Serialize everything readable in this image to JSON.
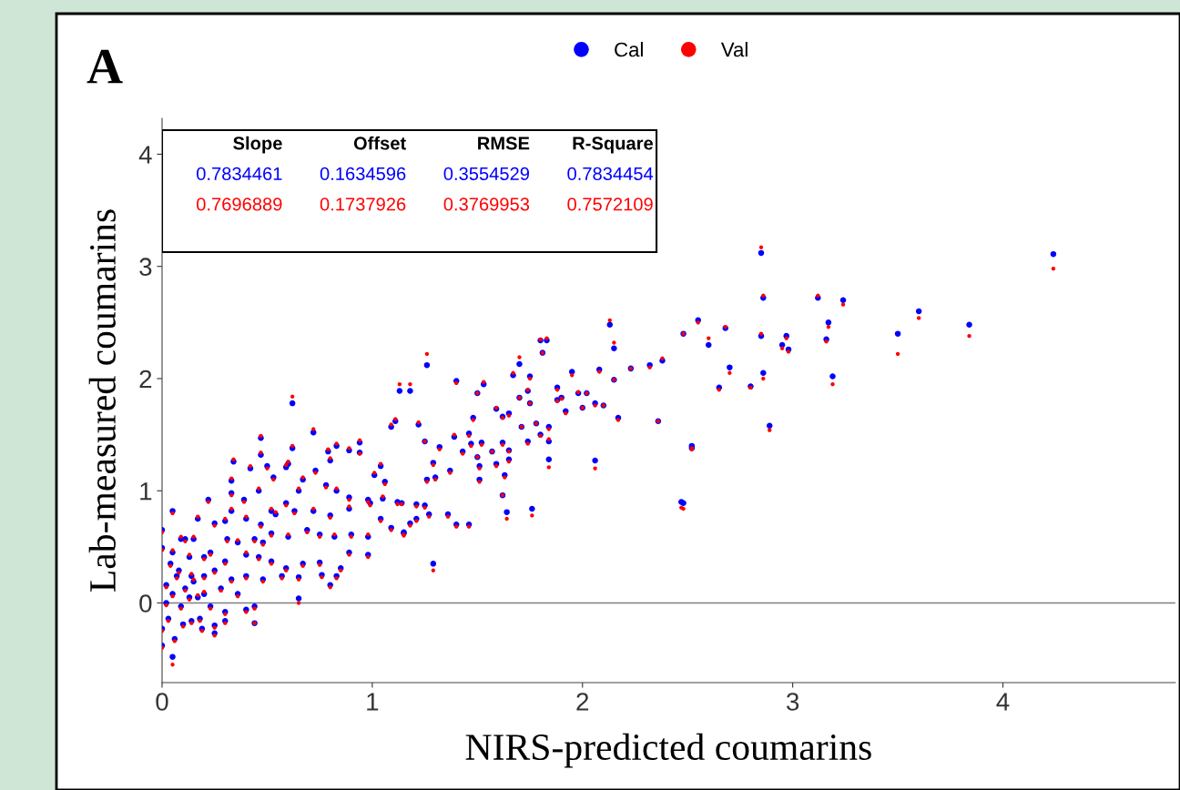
{
  "chart_data": {
    "type": "scatter",
    "xlabel": "NIRS-predicted coumarins",
    "ylabel": "Lab-measured coumarins",
    "annotations": [
      "A",
      "Slope",
      "Offset",
      "RMSE",
      "R-Square",
      "0.7834461",
      "0.1634596",
      "0.3554529",
      "0.7834454",
      "0.7696889",
      "0.1737926",
      "0.3769953",
      "0.7572109"
    ],
    "x": [
      2.47,
      2.52,
      2.48,
      2.55,
      2.6,
      2.65,
      2.68,
      2.7,
      2.8,
      2.85,
      2.86,
      2.86,
      2.85,
      2.89,
      2.95,
      2.97,
      2.98,
      3.12,
      3.16,
      3.17,
      3.19,
      3.24,
      3.5,
      3.6,
      3.84,
      4.24,
      2.13,
      2.15,
      1.26,
      1.18,
      1.4,
      1.53,
      1.5,
      1.7,
      1.8,
      1.83,
      1.81,
      1.67,
      1.75,
      1.95,
      2.08,
      2.23,
      2.32,
      2.38,
      2.15,
      1.88,
      1.98,
      2.02,
      1.7,
      1.74,
      1.75,
      1.9,
      1.88,
      1.92,
      2.0,
      2.06,
      2.1,
      2.17,
      2.36,
      1.48,
      1.59,
      1.62,
      1.65,
      1.22,
      1.71,
      1.78,
      1.84,
      1.84,
      1.8,
      1.74,
      1.25,
      1.32,
      1.39,
      1.46,
      1.47,
      1.52,
      1.43,
      1.5,
      1.57,
      1.62,
      1.65,
      1.65,
      1.84,
      2.06,
      2.52,
      2.48,
      1.29,
      1.37,
      1.3,
      1.26,
      1.51,
      1.51,
      1.59,
      1.63,
      1.62,
      1.64,
      1.76,
      1.21,
      1.25,
      1.27,
      1.36,
      1.4,
      1.46,
      1.21,
      1.18,
      1.15,
      1.14,
      1.13,
      0.62,
      0.72,
      1.09,
      1.11,
      0.47,
      0.62,
      0.79,
      0.94,
      0.94,
      0.89,
      0.83,
      0.34,
      0.42,
      0.47,
      0.6,
      0.5,
      0.33,
      0.33,
      0.33,
      0.22,
      0.05,
      0.17,
      0.25,
      0.3,
      0.39,
      0.46,
      0.53,
      0.59,
      0.65,
      0.73,
      0.8,
      0.78,
      0.67,
      0.59,
      0.52,
      0.4,
      0.47,
      0.54,
      0.63,
      0.72,
      0.8,
      0.89,
      0.98,
      1.04,
      1.06,
      1.01,
      0.99,
      1.05,
      0.89,
      0.83,
      1.12,
      1.04,
      1.09,
      1.15,
      0.98,
      0.9,
      0.82,
      0.75,
      0.69,
      0.6,
      0.52,
      0.44,
      0.36,
      0.31,
      0.4,
      0.48,
      0.46,
      0.52,
      0.59,
      0.65,
      0.57,
      0.48,
      0.4,
      0.33,
      0.36,
      0.44,
      0.44,
      0.4,
      0.65,
      0.76,
      0.8,
      0.83,
      0.85,
      0.75,
      0.67,
      0.89,
      0.98,
      1.29,
      0.3,
      0.25,
      0.2,
      0.28,
      0.23,
      0.3,
      0.3,
      0.25,
      0.25,
      0.19,
      0.18,
      0.14,
      0.1,
      0.06,
      0.05,
      0.03,
      0.0,
      0.0,
      0.0,
      0.0,
      0.04,
      0.08,
      0.13,
      0.15,
      0.11,
      0.09,
      0.05,
      0.02,
      0.05,
      0.11,
      0.15,
      0.13,
      0.09,
      0.17,
      0.2,
      0.02,
      0.07,
      0.14,
      0.23,
      0.2
    ],
    "series": [
      {
        "name": "Cal",
        "color": "#0000ff",
        "values": [
          0.9,
          1.4,
          2.4,
          2.52,
          2.3,
          1.92,
          2.45,
          2.1,
          1.93,
          3.12,
          2.72,
          2.05,
          2.38,
          1.58,
          2.3,
          2.38,
          2.26,
          2.72,
          2.35,
          2.5,
          2.02,
          2.7,
          2.4,
          2.6,
          2.48,
          3.11,
          2.48,
          2.27,
          2.12,
          1.89,
          1.98,
          1.95,
          1.87,
          2.13,
          2.34,
          2.34,
          2.23,
          2.03,
          2.02,
          2.06,
          2.08,
          2.09,
          2.12,
          2.16,
          1.99,
          1.92,
          1.87,
          1.87,
          1.83,
          1.89,
          1.78,
          1.83,
          1.81,
          1.71,
          1.74,
          1.78,
          1.76,
          1.65,
          1.62,
          1.65,
          1.73,
          1.66,
          1.69,
          1.59,
          1.57,
          1.6,
          1.57,
          1.44,
          1.5,
          1.44,
          1.44,
          1.39,
          1.48,
          1.51,
          1.42,
          1.43,
          1.35,
          1.3,
          1.35,
          1.43,
          1.36,
          1.28,
          1.28,
          1.27,
          1.38,
          0.89,
          1.25,
          1.18,
          1.12,
          1.1,
          1.22,
          1.1,
          1.24,
          1.14,
          0.96,
          0.81,
          0.84,
          0.88,
          0.87,
          0.79,
          0.79,
          0.7,
          0.7,
          0.75,
          0.71,
          0.63,
          0.89,
          1.89,
          1.78,
          1.52,
          1.57,
          1.62,
          1.47,
          1.38,
          1.35,
          1.43,
          1.34,
          1.36,
          1.4,
          1.26,
          1.2,
          1.32,
          1.24,
          1.22,
          1.09,
          0.98,
          0.82,
          0.92,
          0.82,
          0.75,
          0.71,
          0.73,
          0.92,
          1.0,
          1.12,
          1.21,
          1.0,
          1.18,
          1.27,
          1.05,
          1.1,
          0.89,
          0.82,
          0.75,
          0.7,
          0.79,
          0.82,
          0.82,
          0.78,
          0.84,
          0.92,
          1.22,
          1.08,
          1.14,
          0.89,
          0.93,
          0.94,
          1.0,
          0.9,
          0.75,
          0.67,
          0.62,
          0.59,
          0.61,
          0.59,
          0.61,
          0.65,
          0.59,
          0.62,
          0.57,
          0.54,
          0.57,
          0.43,
          0.54,
          0.41,
          0.37,
          0.31,
          0.23,
          0.24,
          0.21,
          0.24,
          0.21,
          0.08,
          -0.03,
          -0.18,
          -0.06,
          0.04,
          0.25,
          0.16,
          0.24,
          0.31,
          0.36,
          0.35,
          0.45,
          0.43,
          0.35,
          0.37,
          0.29,
          0.24,
          0.13,
          -0.03,
          -0.08,
          -0.16,
          -0.2,
          -0.27,
          -0.23,
          -0.14,
          -0.16,
          -0.19,
          -0.32,
          -0.48,
          -0.14,
          -0.23,
          -0.38,
          0.65,
          0.49,
          0.35,
          0.29,
          0.41,
          0.57,
          0.57,
          0.57,
          0.45,
          0.16,
          0.08,
          0.13,
          0.19,
          0.05,
          -0.03,
          0.05,
          0.08,
          0.0,
          0.24,
          0.24,
          0.45,
          0.41
        ]
      },
      {
        "name": "Val",
        "color": "#ff0000",
        "values": [
          0.85,
          1.38,
          2.4,
          2.5,
          2.36,
          1.9,
          2.46,
          2.05,
          1.92,
          3.17,
          2.74,
          2.0,
          2.4,
          1.54,
          2.27,
          2.36,
          2.24,
          2.74,
          2.33,
          2.46,
          1.95,
          2.66,
          2.22,
          2.54,
          2.38,
          2.98,
          2.52,
          2.32,
          2.22,
          1.95,
          1.96,
          1.97,
          1.87,
          2.19,
          2.35,
          2.36,
          2.23,
          2.05,
          2.0,
          2.03,
          2.06,
          2.09,
          2.1,
          2.18,
          1.99,
          1.9,
          1.88,
          1.87,
          1.83,
          1.9,
          1.78,
          1.82,
          1.8,
          1.69,
          1.74,
          1.76,
          1.76,
          1.63,
          1.62,
          1.63,
          1.74,
          1.65,
          1.67,
          1.61,
          1.57,
          1.6,
          1.55,
          1.46,
          1.49,
          1.42,
          1.44,
          1.37,
          1.5,
          1.49,
          1.4,
          1.41,
          1.33,
          1.3,
          1.35,
          1.41,
          1.35,
          1.26,
          1.21,
          1.2,
          1.37,
          0.84,
          1.23,
          1.16,
          1.1,
          1.08,
          1.2,
          1.08,
          1.22,
          1.12,
          0.96,
          0.75,
          0.78,
          0.86,
          0.85,
          0.77,
          0.77,
          0.68,
          0.68,
          0.73,
          0.69,
          0.61,
          0.88,
          1.95,
          1.84,
          1.55,
          1.59,
          1.64,
          1.49,
          1.4,
          1.37,
          1.45,
          1.33,
          1.38,
          1.42,
          1.28,
          1.22,
          1.34,
          1.26,
          1.2,
          1.11,
          0.96,
          0.84,
          0.9,
          0.8,
          0.77,
          0.69,
          0.75,
          0.9,
          1.02,
          1.1,
          1.23,
          1.02,
          1.16,
          1.29,
          1.03,
          1.12,
          0.87,
          0.84,
          0.77,
          0.68,
          0.81,
          0.8,
          0.84,
          0.76,
          0.86,
          0.9,
          1.24,
          1.06,
          1.16,
          0.87,
          0.95,
          0.92,
          1.02,
          0.88,
          0.73,
          0.65,
          0.6,
          0.61,
          0.59,
          0.61,
          0.59,
          0.63,
          0.61,
          0.6,
          0.55,
          0.56,
          0.55,
          0.45,
          0.52,
          0.39,
          0.35,
          0.29,
          0.21,
          0.22,
          0.19,
          0.22,
          0.19,
          0.06,
          -0.05,
          -0.18,
          -0.08,
          0.0,
          0.23,
          0.14,
          0.22,
          0.29,
          0.34,
          0.33,
          0.43,
          0.41,
          0.29,
          0.35,
          0.27,
          0.22,
          0.11,
          -0.05,
          -0.1,
          -0.18,
          -0.22,
          -0.29,
          -0.25,
          -0.16,
          -0.18,
          -0.21,
          -0.34,
          -0.55,
          -0.16,
          -0.25,
          -0.4,
          0.63,
          0.47,
          0.33,
          0.27,
          0.43,
          0.59,
          0.55,
          0.59,
          0.47,
          0.14,
          0.06,
          0.11,
          0.21,
          0.03,
          -0.05,
          0.07,
          0.1,
          -0.02,
          0.22,
          0.26,
          0.43,
          0.39
        ]
      }
    ],
    "xlim": [
      0,
      4.82
    ],
    "ylim": [
      -0.71,
      4.32
    ],
    "xticks": [
      0,
      1,
      2,
      3,
      4
    ],
    "yticks": [
      0,
      1,
      2,
      3,
      4
    ],
    "ref_lines": [
      {
        "axis": "y",
        "value": 0,
        "color": "#808080"
      }
    ],
    "marker": "circle",
    "grid": false,
    "legend": "top"
  }
}
